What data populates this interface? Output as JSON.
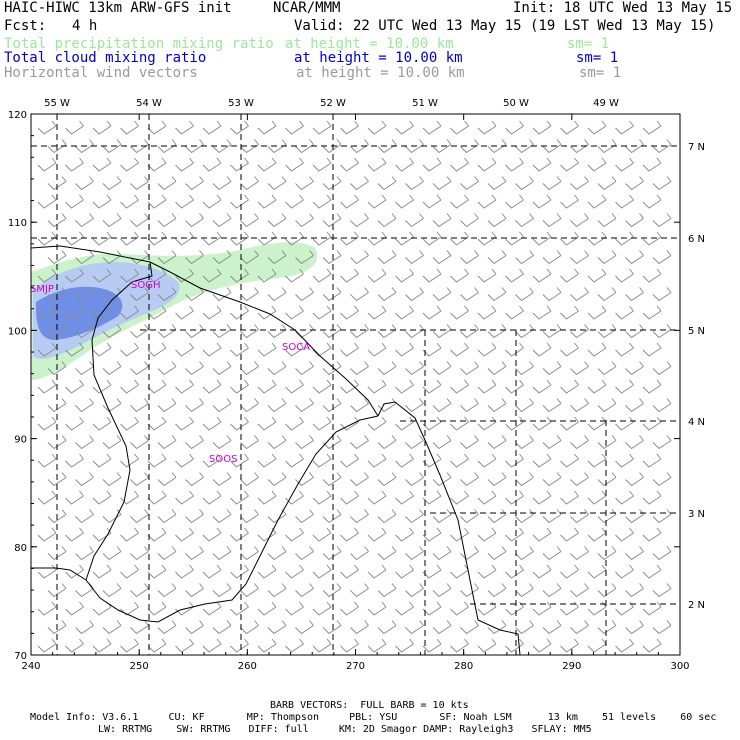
{
  "header": {
    "model_line": "HAIC-HIWC 13km ARW-GFS init",
    "institution": "NCAR/MMM",
    "init": "Init: 18 UTC Wed 13 May 15",
    "fcst_label": "Fcst:",
    "fcst_value": "4 h",
    "valid": "Valid: 22 UTC Wed 13 May 15 (19 LST Wed 13 May 15)"
  },
  "fields": [
    {
      "name": "Total precipitation mixing ratio",
      "height": "at height = 10.00 km",
      "sm": "sm= 1",
      "color": "#9be89b"
    },
    {
      "name": "Total cloud mixing ratio",
      "height": "at height = 10.00 km",
      "sm": "sm= 1",
      "color": "#0000cc"
    },
    {
      "name": "Horizontal wind vectors",
      "height": "at height = 10.00 km",
      "sm": "sm= 1",
      "color": "#9a9a9a"
    }
  ],
  "map": {
    "x_axis": {
      "min": 240,
      "max": 300,
      "ticks": [
        "240",
        "250",
        "260",
        "270",
        "280",
        "290",
        "300"
      ]
    },
    "y_axis": {
      "min": 70,
      "max": 120,
      "ticks": [
        "70",
        "80",
        "90",
        "100",
        "110",
        "120"
      ]
    },
    "lon_labels": [
      "55 W",
      "54 W",
      "53 W",
      "52 W",
      "51 W",
      "50 W",
      "49 W"
    ],
    "lat_labels": [
      "7 N",
      "6 N",
      "5 N",
      "4 N",
      "3 N",
      "2 N"
    ],
    "stations": [
      "SMJP",
      "SOGH",
      "SOCA",
      "SOOS"
    ],
    "colors": {
      "precip": "#ccf2cc",
      "cloud_light": "#b8cbf2",
      "cloud_dark": "#6f8fe6",
      "barb": "#8c8c8c",
      "coast": "#000000",
      "station": "#cc00cc"
    }
  },
  "footer": {
    "barb_note": "BARB VECTORS:  FULL BARB = 10 kts",
    "line1": "Model Info: V3.6.1     CU: KF       MP: Thompson     PBL: YSU       SF: Noah LSM      13 km    51 levels    60 sec",
    "line2": "LW: RRTMG    SW: RRTMG   DIFF: full     KM: 2D Smagor DAMP: Rayleigh3   SFLAY: MM5"
  }
}
